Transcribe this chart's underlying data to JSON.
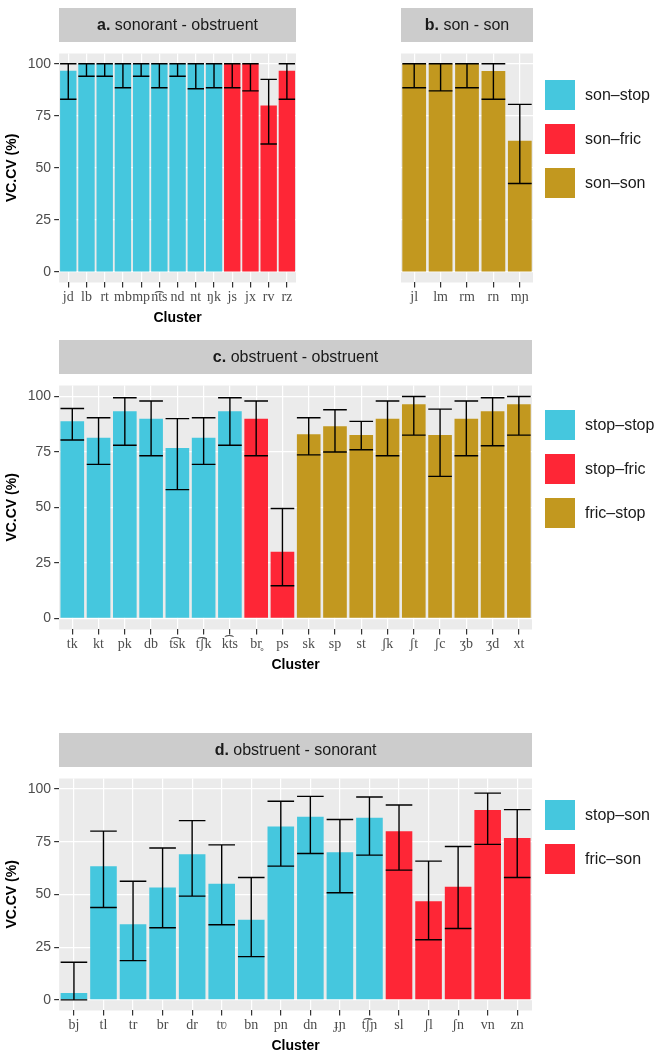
{
  "chart_data": [
    {
      "type": "bar",
      "title": "a. sonorant - obstruent",
      "xlabel": "Cluster",
      "ylabel": "VC.CV (%)",
      "categories": [
        "jd",
        "lb",
        "rt",
        "mb",
        "mp",
        "n͡ts",
        "nd",
        "nt",
        "ŋk",
        "js",
        "jx",
        "rv",
        "rz"
      ],
      "series": [
        {
          "name": "son–stop",
          "color": "#45c7de",
          "values": [
            96.7,
            100,
            100,
            100,
            100,
            100,
            100,
            100,
            100,
            null,
            null,
            null,
            null
          ],
          "errors": [
            [
              83,
              100
            ],
            [
              94,
              100
            ],
            [
              94,
              100
            ],
            [
              88.5,
              100
            ],
            [
              94,
              100
            ],
            [
              88.5,
              100
            ],
            [
              94,
              100
            ],
            [
              88,
              100
            ],
            [
              88.5,
              100
            ],
            null,
            null,
            null,
            null
          ]
        },
        {
          "name": "son–fric",
          "color": "#fe2636",
          "values": [
            null,
            null,
            null,
            null,
            null,
            null,
            null,
            null,
            null,
            100,
            100,
            80,
            96.7
          ],
          "errors": [
            null,
            null,
            null,
            null,
            null,
            null,
            null,
            null,
            null,
            [
              88.5,
              100
            ],
            [
              87,
              100
            ],
            [
              61.5,
              92.5
            ],
            [
              83,
              100
            ]
          ]
        }
      ],
      "ylim": [
        -5,
        105
      ],
      "yticks": [
        0,
        25,
        50,
        75,
        100
      ],
      "grid": true,
      "legend": "right"
    },
    {
      "type": "bar",
      "title": "b. son - son",
      "categories": [
        "jl",
        "lm",
        "rm",
        "rn",
        "mɲ"
      ],
      "series": [
        {
          "name": "son–son",
          "color": "#c2981f",
          "values": [
            100,
            100,
            100,
            96.5,
            63
          ],
          "errors": [
            [
              88.5,
              100
            ],
            [
              87,
              100
            ],
            [
              88.5,
              100
            ],
            [
              83,
              100
            ],
            [
              42.5,
              80.5
            ]
          ]
        }
      ],
      "ylim": [
        -5,
        105
      ],
      "yticks": [
        0,
        25,
        50,
        75,
        100
      ],
      "grid": true,
      "legend": "right",
      "tick_labels": "x"
    },
    {
      "type": "bar",
      "title": "c. obstruent - obstruent",
      "xlabel": "Cluster",
      "ylabel": "VC.CV (%)",
      "categories": [
        "tk",
        "kt",
        "pk",
        "db",
        "t͡sk",
        "t͡ʃk",
        "k͡ts",
        "br̥",
        "ps",
        "sk",
        "sp",
        "st",
        "ʃk",
        "ʃt",
        "ʃc",
        "ʒb",
        "ʒd",
        "xt"
      ],
      "series": [
        {
          "name": "stop–stop",
          "color": "#45c7de",
          "values": [
            88.8,
            81.4,
            93.4,
            90,
            76.8,
            81.4,
            93.4,
            null,
            null,
            null,
            null,
            null,
            null,
            null,
            null,
            null,
            null,
            null
          ],
          "errors": [
            [
              80.4,
              94.6
            ],
            [
              69.4,
              90.4
            ],
            [
              78,
              99.4
            ],
            [
              73.3,
              98
            ],
            [
              58,
              90
            ],
            [
              69.4,
              90.4
            ],
            [
              78,
              99.4
            ],
            null,
            null,
            null,
            null,
            null,
            null,
            null,
            null,
            null,
            null,
            null
          ]
        },
        {
          "name": "stop–fric",
          "color": "#fe2636",
          "values": [
            null,
            null,
            null,
            null,
            null,
            null,
            null,
            90,
            30,
            null,
            null,
            null,
            null,
            null,
            null,
            null,
            null,
            null
          ],
          "errors": [
            null,
            null,
            null,
            null,
            null,
            null,
            null,
            [
              73.3,
              98
            ],
            [
              14.7,
              49.5
            ],
            null,
            null,
            null,
            null,
            null,
            null,
            null,
            null,
            null
          ]
        },
        {
          "name": "fric–stop",
          "color": "#c2981f",
          "values": [
            null,
            null,
            null,
            null,
            null,
            null,
            null,
            null,
            null,
            83,
            86.6,
            82.6,
            90,
            96.5,
            82.6,
            90,
            93.4,
            96.5
          ],
          "errors": [
            null,
            null,
            null,
            null,
            null,
            null,
            null,
            null,
            null,
            [
              73.7,
              90.4
            ],
            [
              75,
              94
            ],
            [
              76,
              88.8
            ],
            [
              73.3,
              98
            ],
            [
              82.6,
              100
            ],
            [
              64,
              94.3
            ],
            [
              73.3,
              98
            ],
            [
              77.8,
              99.4
            ],
            [
              82.6,
              100
            ]
          ]
        }
      ],
      "ylim": [
        -5,
        105
      ],
      "yticks": [
        0,
        25,
        50,
        75,
        100
      ],
      "grid": true,
      "legend": "right"
    },
    {
      "type": "bar",
      "title": "d. obstruent - sonorant",
      "xlabel": "Cluster",
      "ylabel": "VC.CV (%)",
      "categories": [
        "bj",
        "tl",
        "tr",
        "br",
        "dr",
        "tʋ",
        "bn",
        "pn",
        "dn",
        "ɟɲ",
        "t͡ʃɲ",
        "sl",
        "ʃl",
        "ʃn",
        "vn",
        "zn"
      ],
      "series": [
        {
          "name": "stop–son",
          "color": "#45c7de",
          "values": [
            3.3,
            63.4,
            35.8,
            53.3,
            69,
            55,
            38,
            82.2,
            86.8,
            70,
            86.3,
            null,
            null,
            null,
            null,
            null
          ],
          "errors": [
            [
              0,
              17.8
            ],
            [
              43.8,
              80
            ],
            [
              18.6,
              56.2
            ],
            [
              34.2,
              72
            ],
            [
              49.2,
              85
            ],
            [
              35.6,
              73.5
            ],
            [
              20.5,
              58
            ],
            [
              63.4,
              94.2
            ],
            [
              69.4,
              96.5
            ],
            [
              50.8,
              85.5
            ],
            [
              68.6,
              96.2
            ],
            null,
            null,
            null,
            null,
            null
          ]
        },
        {
          "name": "fric–son",
          "color": "#fe2636",
          "values": [
            null,
            null,
            null,
            null,
            null,
            null,
            null,
            null,
            null,
            null,
            null,
            80,
            46.8,
            53.6,
            90,
            76.8
          ],
          "errors": [
            null,
            null,
            null,
            null,
            null,
            null,
            null,
            null,
            null,
            null,
            null,
            [
              61.5,
              92.4
            ],
            [
              28.5,
              65.8
            ],
            [
              33.8,
              72.7
            ],
            [
              73.7,
              98
            ],
            [
              58,
              90.2
            ]
          ]
        }
      ],
      "ylim": [
        -5,
        105
      ],
      "yticks": [
        0,
        25,
        50,
        75,
        100
      ],
      "grid": true,
      "legend": "right"
    }
  ]
}
